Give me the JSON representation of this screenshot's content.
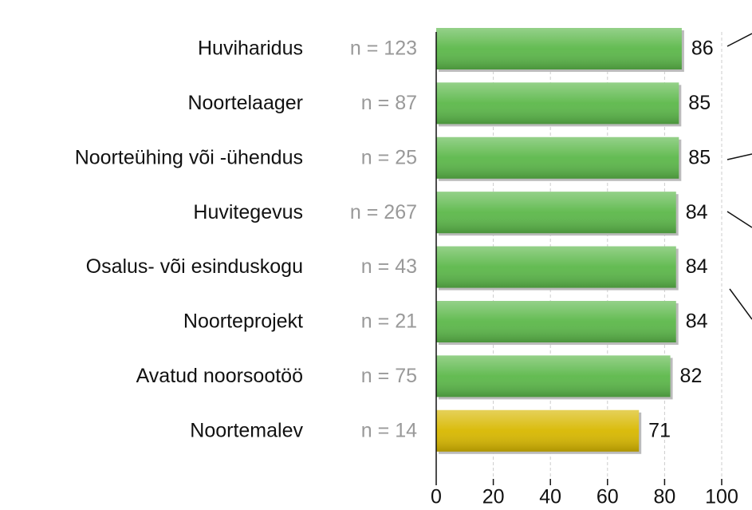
{
  "chart_data": {
    "type": "bar",
    "orientation": "horizontal",
    "categories": [
      "Huviharidus",
      "Noortelaager",
      "Noorteühing või -ühendus",
      "Huvitegevus",
      "Osalus- või esinduskogu",
      "Noorteprojekt",
      "Avatud noorsootöö",
      "Noortemalev"
    ],
    "n_labels": [
      "n = 123",
      "n = 87",
      "n = 25",
      "n = 267",
      "n = 43",
      "n = 21",
      "n = 75",
      "n = 14"
    ],
    "values": [
      86,
      85,
      85,
      84,
      84,
      84,
      82,
      71
    ],
    "colors": [
      "#5cb84a",
      "#5cb84a",
      "#5cb84a",
      "#5cb84a",
      "#5cb84a",
      "#5cb84a",
      "#5cb84a",
      "#d8b800"
    ],
    "xlim": [
      0,
      100
    ],
    "xticks": [
      0,
      20,
      40,
      60,
      80,
      100
    ],
    "grid": true
  }
}
